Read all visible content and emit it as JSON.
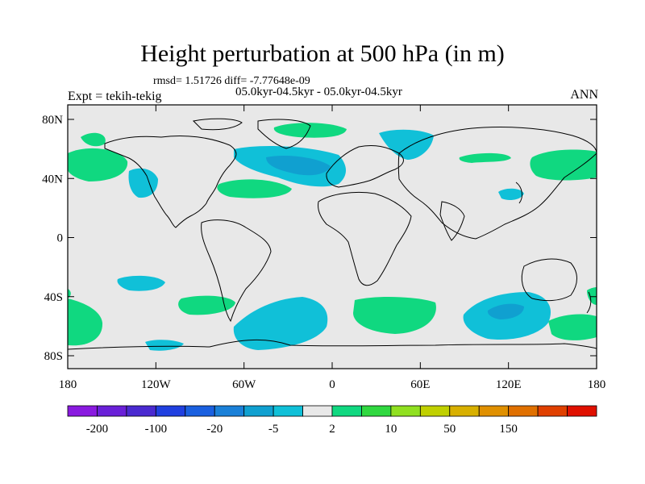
{
  "title": "Height perturbation at 500 hPa (in m)",
  "stats": "rmsd= 1.51726 diff= -7.77648e-09",
  "experiment": "Expt = tekih-tekig",
  "period": "05.0kyr-04.5kyr - 05.0kyr-04.5kyr",
  "season": "ANN",
  "map": {
    "lat_ticks": [
      "80N",
      "40N",
      "0",
      "40S",
      "80S"
    ],
    "lat_values": [
      80,
      40,
      0,
      -40,
      -80
    ],
    "lon_ticks": [
      "180",
      "120W",
      "60W",
      "0",
      "60E",
      "120E",
      "180"
    ],
    "lon_values": [
      -180,
      -120,
      -60,
      0,
      60,
      120,
      180
    ],
    "background_color": "#e8e8e8"
  },
  "colorbar": {
    "colors": [
      "#8a1ae0",
      "#6a20d8",
      "#4a2ad0",
      "#2040e0",
      "#1a60e0",
      "#1a80d8",
      "#10a0d0",
      "#10c0d8",
      "#e8e8e8",
      "#10d880",
      "#30d840",
      "#90e020",
      "#c0d000",
      "#d8b000",
      "#e09000",
      "#e07000",
      "#e04000",
      "#e01000"
    ],
    "labels": [
      "-200",
      "-100",
      "-20",
      "-5",
      "2",
      "10",
      "50",
      "150"
    ]
  },
  "legend_colors": {
    "negative_light": "#10c0d8",
    "negative_mid": "#10a0d0",
    "positive_light": "#10d880"
  }
}
